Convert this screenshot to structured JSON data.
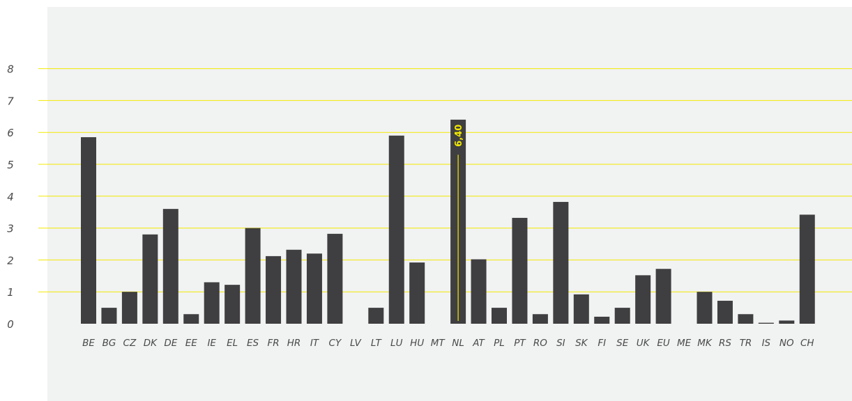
{
  "chart_data": {
    "type": "bar",
    "categories": [
      "BE",
      "BG",
      "CZ",
      "DK",
      "DE",
      "EE",
      "IE",
      "EL",
      "ES",
      "FR",
      "HR",
      "IT",
      "CY",
      "LV",
      "LT",
      "LU",
      "HU",
      "MT",
      "NL",
      "AT",
      "PL",
      "PT",
      "RO",
      "SI",
      "SK",
      "FI",
      "SE",
      "UK",
      "EU",
      "ME",
      "MK",
      "RS",
      "TR",
      "IS",
      "NO",
      "CH"
    ],
    "values": [
      5.85,
      0.5,
      1.0,
      2.8,
      3.6,
      0.3,
      1.3,
      1.22,
      3.0,
      2.12,
      2.32,
      2.2,
      2.82,
      0,
      0.5,
      5.9,
      1.92,
      0,
      6.4,
      2.02,
      0.5,
      3.32,
      0.3,
      3.82,
      0.92,
      0.22,
      0.5,
      1.52,
      1.72,
      0,
      1.0,
      0.72,
      0.3,
      0.03,
      0.1,
      3.42
    ],
    "yticks": [
      "0",
      "1",
      "2",
      "3",
      "4",
      "5",
      "6",
      "7",
      "8"
    ],
    "ylim": [
      0,
      8
    ],
    "grid": true,
    "highlight": {
      "category": "NL",
      "label": "6,40"
    },
    "colors": {
      "bar": "#3f3e40",
      "grid": "#f2ea00",
      "panel": "#f1f2f2",
      "highlight": "#f2ea00"
    }
  }
}
